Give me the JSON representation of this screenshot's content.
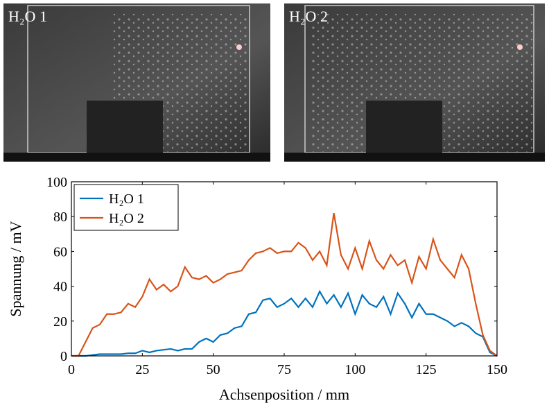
{
  "panels": [
    {
      "label": "H₂O 1"
    },
    {
      "label": "H₂O 2"
    }
  ],
  "chart_data": {
    "type": "line",
    "x_label": "Achsenposition / mm",
    "y_label": "Spannung / mV",
    "x": [
      0,
      2.5,
      5,
      7.5,
      10,
      12.5,
      15,
      17.5,
      20,
      22.5,
      25,
      27.5,
      30,
      32.5,
      35,
      37.5,
      40,
      42.5,
      45,
      47.5,
      50,
      52.5,
      55,
      57.5,
      60,
      62.5,
      65,
      67.5,
      70,
      72.5,
      75,
      77.5,
      80,
      82.5,
      85,
      87.5,
      90,
      92.5,
      95,
      97.5,
      100,
      102.5,
      105,
      107.5,
      110,
      112.5,
      115,
      117.5,
      120,
      122.5,
      125,
      127.5,
      130,
      132.5,
      135,
      137.5,
      140,
      142.5,
      145,
      147.5,
      150
    ],
    "series": [
      {
        "name": "H₂O 1",
        "color": "#0072bd",
        "values": [
          0,
          0,
          0,
          0.5,
          1,
          1,
          1,
          1,
          1.5,
          1.5,
          3,
          2,
          3,
          3.5,
          4,
          3,
          4,
          4,
          8,
          10,
          8,
          12,
          13,
          16,
          17,
          24,
          25,
          32,
          33,
          28,
          30,
          33,
          28,
          33,
          28,
          37,
          30,
          35,
          28,
          36,
          24,
          35,
          30,
          28,
          34,
          24,
          36,
          30,
          22,
          30,
          24,
          24,
          22,
          20,
          17,
          19,
          17,
          13,
          11,
          2,
          0
        ]
      },
      {
        "name": "H₂O 2",
        "color": "#d95319",
        "values": [
          0,
          0,
          8,
          16,
          18,
          24,
          24,
          25,
          30,
          28,
          34,
          44,
          38,
          41,
          37,
          40,
          51,
          45,
          44,
          46,
          42,
          44,
          47,
          48,
          49,
          55,
          59,
          60,
          62,
          59,
          60,
          60,
          65,
          62,
          55,
          60,
          52,
          82,
          58,
          50,
          62,
          50,
          66,
          55,
          50,
          58,
          52,
          55,
          42,
          57,
          50,
          67,
          55,
          50,
          45,
          58,
          50,
          30,
          12,
          3,
          0
        ]
      }
    ],
    "xlim": [
      0,
      150
    ],
    "ylim": [
      0,
      100
    ],
    "xticks": [
      0,
      25,
      50,
      75,
      100,
      125,
      150
    ],
    "yticks": [
      0,
      20,
      40,
      60,
      80,
      100
    ],
    "legend": "upper left"
  }
}
